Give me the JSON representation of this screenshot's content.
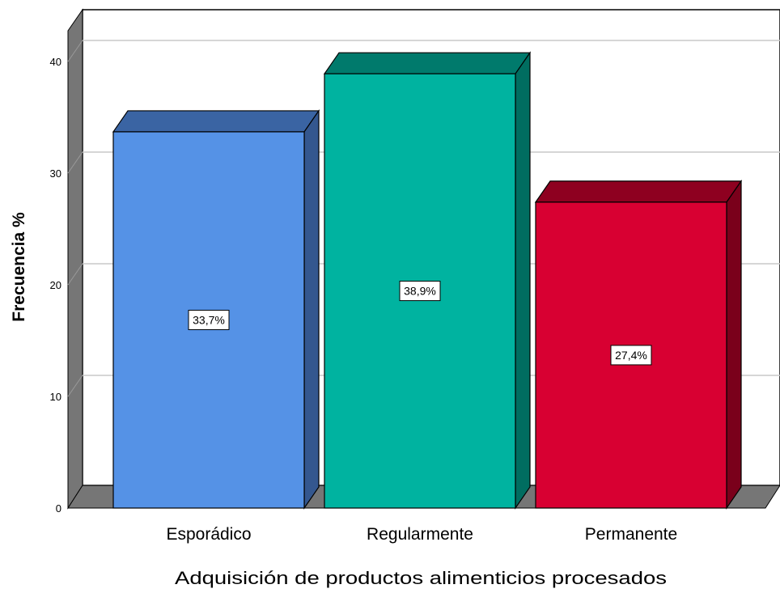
{
  "chart_data": {
    "type": "bar",
    "xlabel": "Adquisición de productos alimenticios procesados",
    "ylabel": "Frecuencia %",
    "categories": [
      "Esporádico",
      "Regularmente",
      "Permanente"
    ],
    "values": [
      33.7,
      38.9,
      27.4
    ],
    "data_labels": [
      "33,7%",
      "38,9%",
      "27,4%"
    ],
    "ylim": [
      0,
      40
    ],
    "yticks": [
      "0",
      "10",
      "20",
      "30",
      "40"
    ],
    "grid": true,
    "legend": "none",
    "style": "3d",
    "colors": {
      "front": [
        "#5592e6",
        "#00b3a0",
        "#d80032"
      ],
      "top": [
        "#3a64a3",
        "#007a6c",
        "#8e0020"
      ],
      "side": [
        "#34578f",
        "#006d60",
        "#7a001b"
      ]
    }
  }
}
